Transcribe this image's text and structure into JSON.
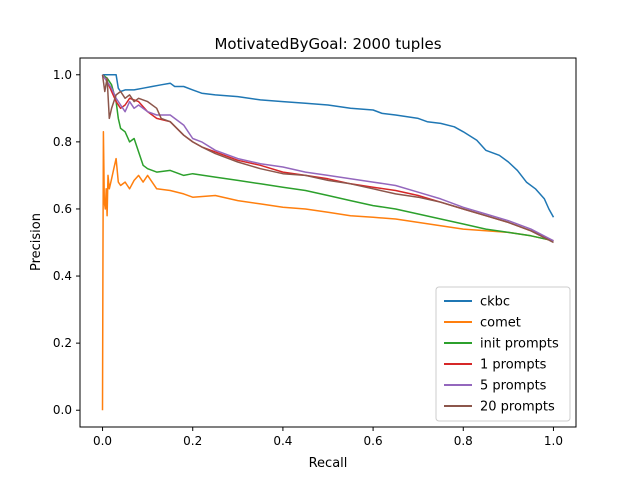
{
  "chart_data": {
    "type": "line",
    "title": "MotivatedByGoal: 2000 tuples",
    "xlabel": "Recall",
    "ylabel": "Precision",
    "xlim": [
      -0.05,
      1.05
    ],
    "ylim": [
      -0.05,
      1.05
    ],
    "xticks": [
      0.0,
      0.2,
      0.4,
      0.6,
      0.8,
      1.0
    ],
    "xtick_labels": [
      "0.0",
      "0.2",
      "0.4",
      "0.6",
      "0.8",
      "1.0"
    ],
    "yticks": [
      0.0,
      0.2,
      0.4,
      0.6,
      0.8,
      1.0
    ],
    "ytick_labels": [
      "0.0",
      "0.2",
      "0.4",
      "0.6",
      "0.8",
      "1.0"
    ],
    "grid": false,
    "legend_position": "lower-right",
    "series": [
      {
        "name": "ckbc",
        "color": "#1f77b4",
        "x": [
          0.0,
          0.005,
          0.01,
          0.02,
          0.03,
          0.035,
          0.04,
          0.05,
          0.07,
          0.09,
          0.11,
          0.13,
          0.15,
          0.16,
          0.18,
          0.2,
          0.22,
          0.25,
          0.3,
          0.35,
          0.4,
          0.45,
          0.5,
          0.55,
          0.6,
          0.62,
          0.65,
          0.7,
          0.72,
          0.75,
          0.78,
          0.8,
          0.83,
          0.85,
          0.88,
          0.9,
          0.92,
          0.94,
          0.96,
          0.98,
          0.99,
          1.0
        ],
        "y": [
          1.0,
          1.0,
          1.0,
          1.0,
          1.0,
          0.96,
          0.95,
          0.955,
          0.955,
          0.96,
          0.965,
          0.97,
          0.975,
          0.965,
          0.965,
          0.955,
          0.945,
          0.94,
          0.935,
          0.925,
          0.92,
          0.915,
          0.91,
          0.9,
          0.895,
          0.885,
          0.88,
          0.87,
          0.86,
          0.855,
          0.845,
          0.83,
          0.805,
          0.775,
          0.76,
          0.74,
          0.715,
          0.68,
          0.66,
          0.63,
          0.6,
          0.575
        ]
      },
      {
        "name": "comet",
        "color": "#ff7f0e",
        "x": [
          0.0,
          0.001,
          0.002,
          0.003,
          0.004,
          0.006,
          0.008,
          0.01,
          0.012,
          0.015,
          0.02,
          0.025,
          0.03,
          0.035,
          0.04,
          0.05,
          0.06,
          0.07,
          0.08,
          0.09,
          0.1,
          0.12,
          0.15,
          0.18,
          0.2,
          0.25,
          0.3,
          0.35,
          0.4,
          0.45,
          0.5,
          0.55,
          0.6,
          0.65,
          0.7,
          0.75,
          0.8,
          0.85,
          0.9,
          0.95,
          1.0
        ],
        "y": [
          0.0,
          0.5,
          0.83,
          0.72,
          0.62,
          0.6,
          0.66,
          0.58,
          0.7,
          0.66,
          0.69,
          0.72,
          0.75,
          0.68,
          0.67,
          0.68,
          0.66,
          0.685,
          0.7,
          0.68,
          0.7,
          0.66,
          0.655,
          0.645,
          0.635,
          0.64,
          0.625,
          0.615,
          0.605,
          0.6,
          0.59,
          0.58,
          0.575,
          0.57,
          0.56,
          0.55,
          0.54,
          0.535,
          0.53,
          0.52,
          0.505
        ]
      },
      {
        "name": "init prompts",
        "color": "#2ca02c",
        "x": [
          0.0,
          0.01,
          0.02,
          0.03,
          0.035,
          0.04,
          0.05,
          0.06,
          0.07,
          0.08,
          0.09,
          0.1,
          0.12,
          0.15,
          0.18,
          0.2,
          0.25,
          0.3,
          0.35,
          0.4,
          0.45,
          0.5,
          0.55,
          0.6,
          0.65,
          0.7,
          0.75,
          0.8,
          0.85,
          0.9,
          0.95,
          1.0
        ],
        "y": [
          1.0,
          0.99,
          0.97,
          0.92,
          0.87,
          0.84,
          0.83,
          0.8,
          0.81,
          0.77,
          0.73,
          0.72,
          0.71,
          0.715,
          0.7,
          0.705,
          0.695,
          0.685,
          0.675,
          0.665,
          0.655,
          0.64,
          0.625,
          0.61,
          0.6,
          0.585,
          0.57,
          0.555,
          0.54,
          0.53,
          0.52,
          0.505
        ]
      },
      {
        "name": "1 prompts",
        "color": "#d62728",
        "x": [
          0.0,
          0.01,
          0.02,
          0.03,
          0.04,
          0.05,
          0.06,
          0.08,
          0.1,
          0.12,
          0.15,
          0.18,
          0.2,
          0.22,
          0.25,
          0.3,
          0.35,
          0.4,
          0.45,
          0.5,
          0.55,
          0.6,
          0.65,
          0.7,
          0.75,
          0.8,
          0.85,
          0.9,
          0.95,
          1.0
        ],
        "y": [
          1.0,
          0.98,
          0.95,
          0.92,
          0.9,
          0.91,
          0.93,
          0.92,
          0.89,
          0.87,
          0.86,
          0.82,
          0.8,
          0.785,
          0.77,
          0.745,
          0.73,
          0.71,
          0.7,
          0.69,
          0.675,
          0.665,
          0.655,
          0.64,
          0.62,
          0.6,
          0.58,
          0.56,
          0.535,
          0.505
        ]
      },
      {
        "name": "5 prompts",
        "color": "#9467bd",
        "x": [
          0.0,
          0.01,
          0.02,
          0.03,
          0.04,
          0.05,
          0.06,
          0.07,
          0.08,
          0.1,
          0.12,
          0.15,
          0.18,
          0.19,
          0.2,
          0.22,
          0.25,
          0.3,
          0.35,
          0.4,
          0.45,
          0.5,
          0.55,
          0.6,
          0.65,
          0.7,
          0.75,
          0.8,
          0.85,
          0.9,
          0.95,
          1.0
        ],
        "y": [
          1.0,
          0.98,
          0.96,
          0.93,
          0.91,
          0.89,
          0.92,
          0.9,
          0.91,
          0.89,
          0.88,
          0.88,
          0.85,
          0.83,
          0.81,
          0.8,
          0.775,
          0.75,
          0.735,
          0.725,
          0.71,
          0.7,
          0.69,
          0.68,
          0.67,
          0.65,
          0.63,
          0.605,
          0.585,
          0.565,
          0.54,
          0.505
        ]
      },
      {
        "name": "20 prompts",
        "color": "#8c564b",
        "x": [
          0.0,
          0.005,
          0.01,
          0.015,
          0.02,
          0.03,
          0.04,
          0.05,
          0.06,
          0.07,
          0.08,
          0.1,
          0.12,
          0.13,
          0.15,
          0.18,
          0.2,
          0.22,
          0.25,
          0.3,
          0.35,
          0.4,
          0.45,
          0.5,
          0.55,
          0.6,
          0.65,
          0.7,
          0.75,
          0.8,
          0.85,
          0.9,
          0.95,
          1.0
        ],
        "y": [
          1.0,
          0.95,
          0.99,
          0.87,
          0.9,
          0.94,
          0.95,
          0.93,
          0.94,
          0.92,
          0.93,
          0.92,
          0.9,
          0.87,
          0.86,
          0.82,
          0.8,
          0.785,
          0.765,
          0.74,
          0.72,
          0.705,
          0.7,
          0.685,
          0.675,
          0.66,
          0.645,
          0.635,
          0.62,
          0.6,
          0.58,
          0.56,
          0.535,
          0.5
        ]
      }
    ]
  }
}
